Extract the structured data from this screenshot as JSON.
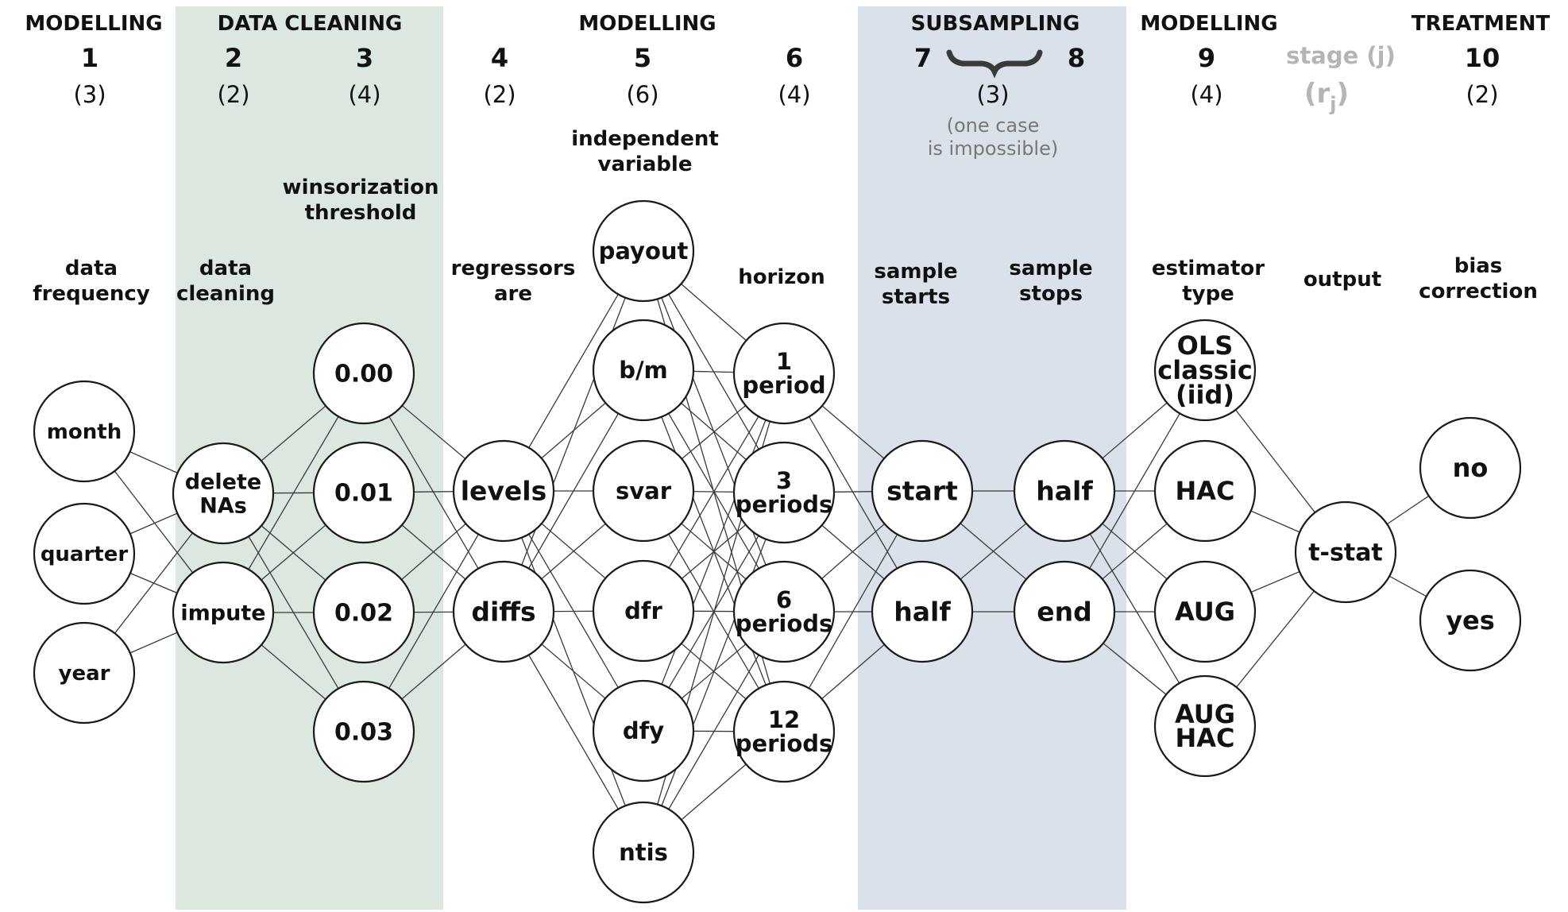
{
  "colors": {
    "data_cleaning_band": "#dce8df",
    "subsampling_band": "#dbe1ea",
    "text": "#111111",
    "muted": "#b5b5b5",
    "note": "#777777"
  },
  "groups": {
    "modelling_1": "MODELLING",
    "data_cleaning": "DATA CLEANING",
    "modelling_2": "MODELLING",
    "subsampling": "SUBSAMPLING",
    "modelling_3": "MODELLING",
    "treatment": "TREATMENT"
  },
  "legend": {
    "stage_label": "stage (j)",
    "count_label": "(r",
    "count_sub": "j",
    "count_close": ")"
  },
  "stages": [
    {
      "num": "1",
      "count": "(3)"
    },
    {
      "num": "2",
      "count": "(2)"
    },
    {
      "num": "3",
      "count": "(4)"
    },
    {
      "num": "4",
      "count": "(2)"
    },
    {
      "num": "5",
      "count": "(6)"
    },
    {
      "num": "6",
      "count": "(4)"
    },
    {
      "num": "7",
      "count": ""
    },
    {
      "num": "8",
      "count": ""
    },
    {
      "num": "9",
      "count": "(4)"
    },
    {
      "num": "10",
      "count": "(2)"
    }
  ],
  "subsampling_count": "(3)",
  "subsampling_note": [
    "(one case",
    "is impossible)"
  ],
  "labels": {
    "data_frequency": [
      "data",
      "frequency"
    ],
    "data_cleaning": [
      "data",
      "cleaning"
    ],
    "winsorization": [
      "winsorization",
      "threshold"
    ],
    "regressors": [
      "regressors",
      "are"
    ],
    "independent": [
      "independent",
      "variable"
    ],
    "horizon": [
      "horizon"
    ],
    "sample_starts": [
      "sample",
      "starts"
    ],
    "sample_stops": [
      "sample",
      "stops"
    ],
    "estimator": [
      "estimator",
      "type"
    ],
    "output": [
      "output"
    ],
    "bias": [
      "bias",
      "correction"
    ]
  },
  "columns": [
    {
      "key": "freq",
      "nodes": [
        [
          "month"
        ],
        [
          "quarter"
        ],
        [
          "year"
        ]
      ]
    },
    {
      "key": "clean",
      "nodes": [
        [
          "delete",
          "NAs"
        ],
        [
          "impute"
        ]
      ]
    },
    {
      "key": "winsor",
      "nodes": [
        [
          "0.00"
        ],
        [
          "0.01"
        ],
        [
          "0.02"
        ],
        [
          "0.03"
        ]
      ]
    },
    {
      "key": "regressors",
      "nodes": [
        [
          "levels"
        ],
        [
          "diffs"
        ]
      ]
    },
    {
      "key": "indep",
      "nodes": [
        [
          "payout"
        ],
        [
          "b/m"
        ],
        [
          "svar"
        ],
        [
          "dfr"
        ],
        [
          "dfy"
        ],
        [
          "ntis"
        ]
      ]
    },
    {
      "key": "horizon",
      "nodes": [
        [
          "1",
          "period"
        ],
        [
          "3",
          "periods"
        ],
        [
          "6",
          "periods"
        ],
        [
          "12",
          "periods"
        ]
      ]
    },
    {
      "key": "start",
      "nodes": [
        [
          "start"
        ],
        [
          "half"
        ]
      ]
    },
    {
      "key": "stop",
      "nodes": [
        [
          "half"
        ],
        [
          "end"
        ]
      ]
    },
    {
      "key": "estimator",
      "nodes": [
        [
          "OLS",
          "classic",
          "(iid)"
        ],
        [
          "HAC"
        ],
        [
          "AUG"
        ],
        [
          "AUG",
          "HAC"
        ]
      ]
    },
    {
      "key": "output",
      "nodes": [
        [
          "t-stat"
        ]
      ]
    },
    {
      "key": "bias",
      "nodes": [
        [
          "no"
        ],
        [
          "yes"
        ]
      ]
    }
  ]
}
